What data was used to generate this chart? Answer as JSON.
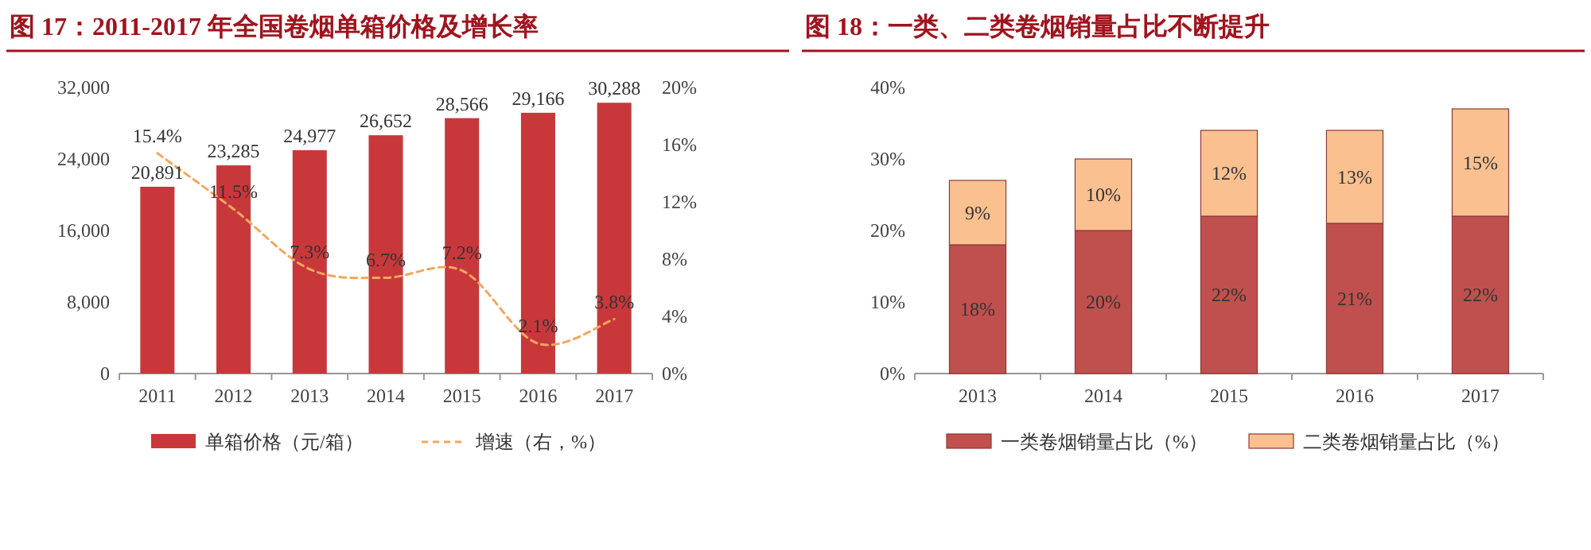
{
  "chart_data": [
    {
      "type": "bar",
      "title": "图 17：2011-2017 年全国卷烟单箱价格及增长率",
      "categories": [
        "2011",
        "2012",
        "2013",
        "2014",
        "2015",
        "2016",
        "2017"
      ],
      "series": [
        {
          "name": "单箱价格（元/箱）",
          "color": "#c8383b",
          "values": [
            20891,
            23285,
            24977,
            26652,
            28566,
            29166,
            30288
          ],
          "value_labels": [
            "20,891",
            "23,285",
            "24,977",
            "26,652",
            "28,566",
            "29,166",
            "30,288"
          ]
        },
        {
          "name": "增速（右，%）",
          "type": "line",
          "axis": "y2",
          "line_style": "dashed",
          "color": "#f5a65b",
          "values": [
            15.4,
            11.5,
            7.3,
            6.7,
            7.2,
            2.1,
            3.8
          ],
          "value_labels": [
            "15.4%",
            "11.5%",
            "7.3%",
            "6.7%",
            "7.2%",
            "2.1%",
            "3.8%"
          ]
        }
      ],
      "ylim": [
        0,
        32000
      ],
      "yticks": [
        0,
        {
          "value": 8000,
          "label": "8,000"
        },
        {
          "value": 16000,
          "label": "16,000"
        },
        {
          "value": 24000,
          "label": "24,000"
        },
        {
          "value": 32000,
          "label": "32,000"
        }
      ],
      "y2lim": [
        0,
        20
      ],
      "y2ticks": [
        {
          "value": 0,
          "label": "0%"
        },
        {
          "value": 4,
          "label": "4%"
        },
        {
          "value": 8,
          "label": "8%"
        },
        {
          "value": 12,
          "label": "12%"
        },
        {
          "value": 16,
          "label": "16%"
        },
        {
          "value": 20,
          "label": "20%"
        }
      ],
      "legend": "bottom",
      "grid": false
    },
    {
      "type": "bar",
      "stacked": true,
      "title": "图 18：一类、二类卷烟销量占比不断提升",
      "categories": [
        "2013",
        "2014",
        "2015",
        "2016",
        "2017"
      ],
      "series": [
        {
          "name": "一类卷烟销量占比（%）",
          "color": "#c0504d",
          "values": [
            18,
            20,
            22,
            21,
            22
          ],
          "value_labels": [
            "18%",
            "20%",
            "22%",
            "21%",
            "22%"
          ]
        },
        {
          "name": "二类卷烟销量占比（%）",
          "color": "#fac090",
          "values": [
            9,
            10,
            12,
            13,
            15
          ],
          "value_labels": [
            "9%",
            "10%",
            "12%",
            "13%",
            "15%"
          ]
        }
      ],
      "ylim": [
        0,
        40
      ],
      "yticks": [
        {
          "value": 0,
          "label": "0%"
        },
        {
          "value": 10,
          "label": "10%"
        },
        {
          "value": 20,
          "label": "20%"
        },
        {
          "value": 30,
          "label": "30%"
        },
        {
          "value": 40,
          "label": "40%"
        }
      ],
      "legend": "bottom",
      "grid": false
    }
  ]
}
